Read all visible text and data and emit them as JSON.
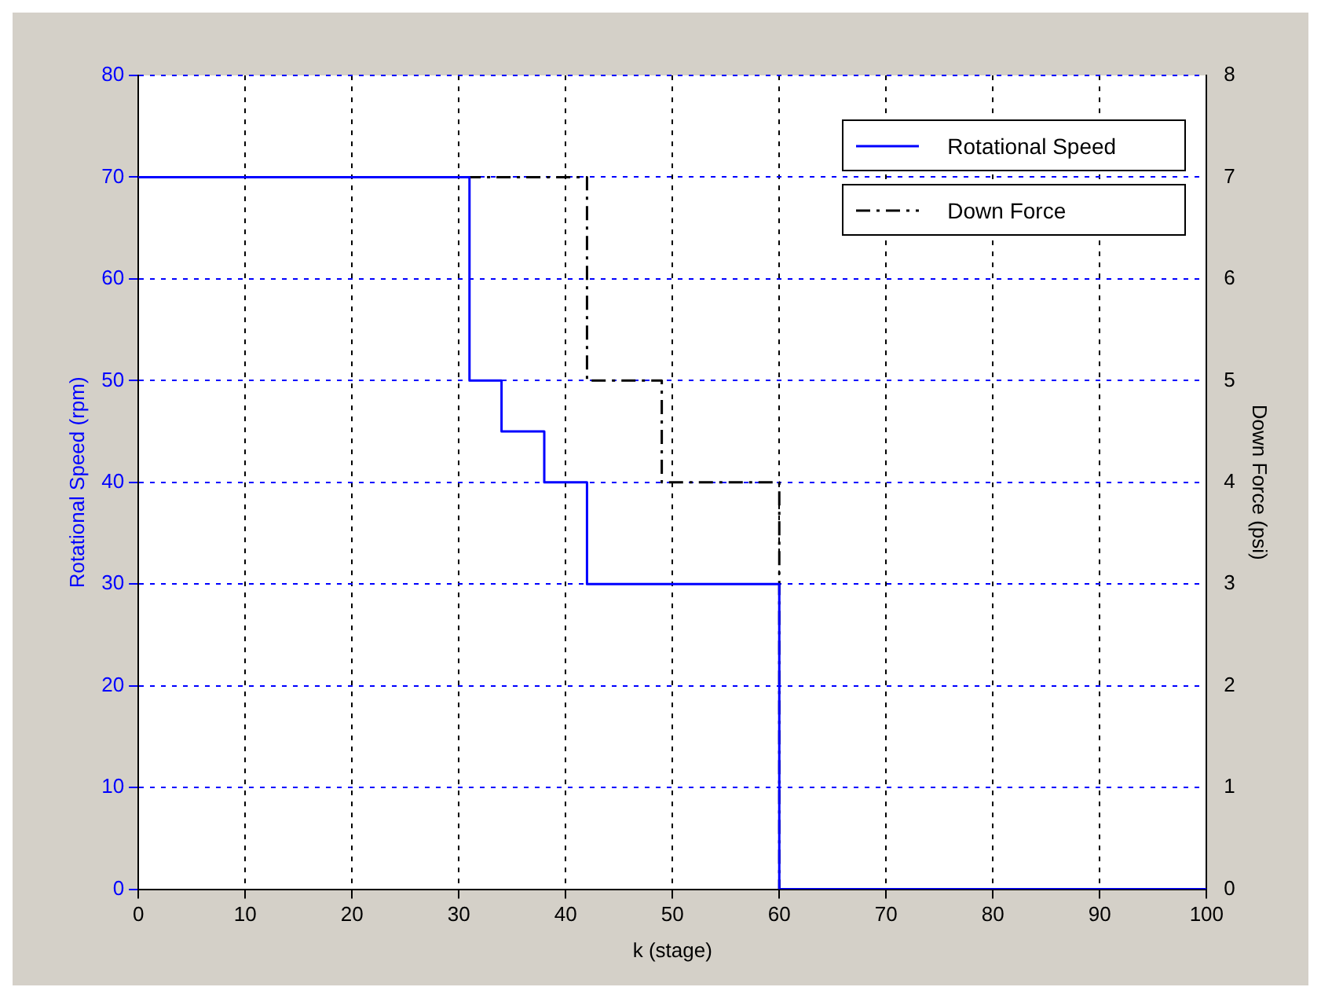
{
  "chart_data": {
    "type": "step",
    "xlabel": "k (stage)",
    "ylabel": "Rotational Speed (rpm)",
    "y2label": "Down Force (psi)",
    "xlim": [
      0,
      100
    ],
    "xticks": [
      0,
      10,
      20,
      30,
      40,
      50,
      60,
      70,
      80,
      90,
      100
    ],
    "ylim": [
      0,
      80
    ],
    "yticks": [
      0,
      10,
      20,
      30,
      40,
      50,
      60,
      70,
      80
    ],
    "y2lim": [
      0,
      8
    ],
    "y2ticks": [
      0,
      1,
      2,
      3,
      4,
      5,
      6,
      7,
      8
    ],
    "grid": true,
    "legend": "top right",
    "marker": "none",
    "series": [
      {
        "name": "Rotational Speed",
        "color": "#0000ff",
        "x": [
          0,
          31,
          34,
          38,
          42,
          60,
          100
        ],
        "values": [
          70,
          50,
          45,
          40,
          30,
          0,
          0
        ],
        "line_style": "solid"
      },
      {
        "name": "Down Force",
        "color": "#000000",
        "x": [
          0,
          42,
          49,
          60,
          100
        ],
        "values": [
          7,
          5,
          4,
          0,
          0
        ],
        "axis": "y2",
        "line_style": "dashed"
      }
    ]
  }
}
